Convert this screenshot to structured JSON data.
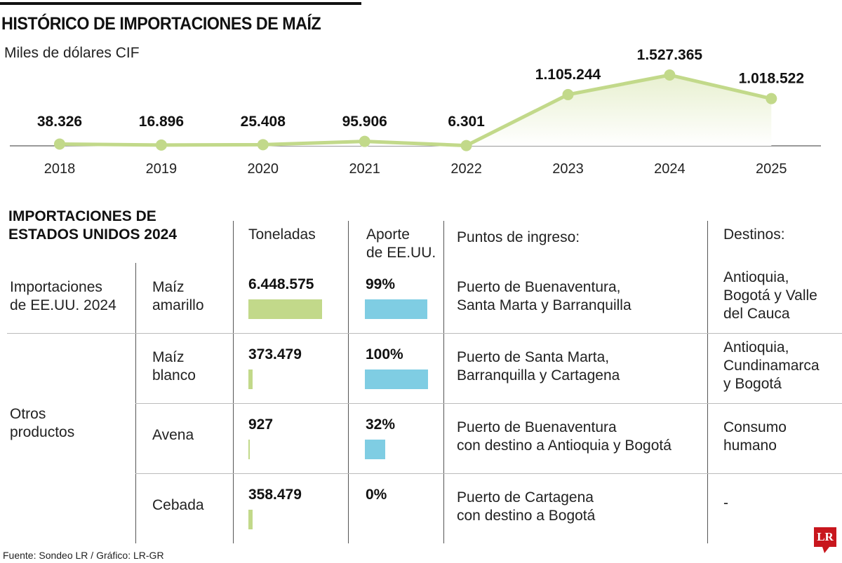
{
  "title": "HISTÓRICO DE IMPORTACIONES DE MAÍZ",
  "subtitle": "Miles de dólares CIF",
  "colors": {
    "line": "#c2d98a",
    "fill": "#e8f0d0",
    "tons_bar": "#c2d98a",
    "share_bar": "#7fcde3",
    "logo": "#c8161d"
  },
  "chart_data": {
    "type": "line",
    "title": "HISTÓRICO DE IMPORTACIONES DE MAÍZ",
    "ylabel": "Miles de dólares CIF",
    "categories": [
      "2018",
      "2019",
      "2020",
      "2021",
      "2022",
      "2023",
      "2024",
      "2025"
    ],
    "values": [
      38326,
      16896,
      25408,
      95906,
      6301,
      1105244,
      1527365,
      1018522
    ],
    "labels": [
      "38.326",
      "16.896",
      "25.408",
      "95.906",
      "6.301",
      "1.105.244",
      "1.527.365",
      "1.018.522"
    ],
    "grid": false
  },
  "table": {
    "title_line1": "IMPORTACIONES DE",
    "title_line2": "ESTADOS UNIDOS 2024",
    "headers": {
      "tons": "Toneladas",
      "share_line1": "Aporte",
      "share_line2": "de EE.UU.",
      "ports": "Puntos de ingreso:",
      "dest": "Destinos:"
    },
    "groups": [
      {
        "line1": "Importaciones",
        "line2": "de EE.UU. 2024"
      },
      {
        "line1": "Otros",
        "line2": "productos"
      }
    ],
    "rows": [
      {
        "product": [
          "Maíz",
          "amarillo"
        ],
        "tons": "6.448.575",
        "tons_value": 6448575,
        "share": "99%",
        "share_value": 99,
        "ports": [
          "Puerto de Buenaventura,",
          "Santa Marta y Barranquilla"
        ],
        "dest": [
          "Antioquia,",
          "Bogotá y Valle",
          "del Cauca"
        ]
      },
      {
        "product": [
          "Maíz",
          "blanco"
        ],
        "tons": "373.479",
        "tons_value": 373479,
        "share": "100%",
        "share_value": 100,
        "ports": [
          "Puerto de Santa Marta,",
          "Barranquilla y Cartagena"
        ],
        "dest": [
          "Antioquia,",
          "Cundinamarca",
          "y Bogotá"
        ]
      },
      {
        "product": [
          "Avena"
        ],
        "tons": "927",
        "tons_value": 927,
        "share": "32%",
        "share_value": 32,
        "ports": [
          "Puerto de Buenaventura",
          "con destino a Antioquia y Bogotá"
        ],
        "dest": [
          "Consumo",
          "humano"
        ]
      },
      {
        "product": [
          "Cebada"
        ],
        "tons": "358.479",
        "tons_value": 358479,
        "share": "0%",
        "share_value": 0,
        "ports": [
          "Puerto de Cartagena",
          "con destino a Bogotá"
        ],
        "dest": [
          "-"
        ]
      }
    ]
  },
  "footer": {
    "source": "Fuente: Sondeo LR / Gráfico: LR-GR",
    "logo": "LR"
  }
}
